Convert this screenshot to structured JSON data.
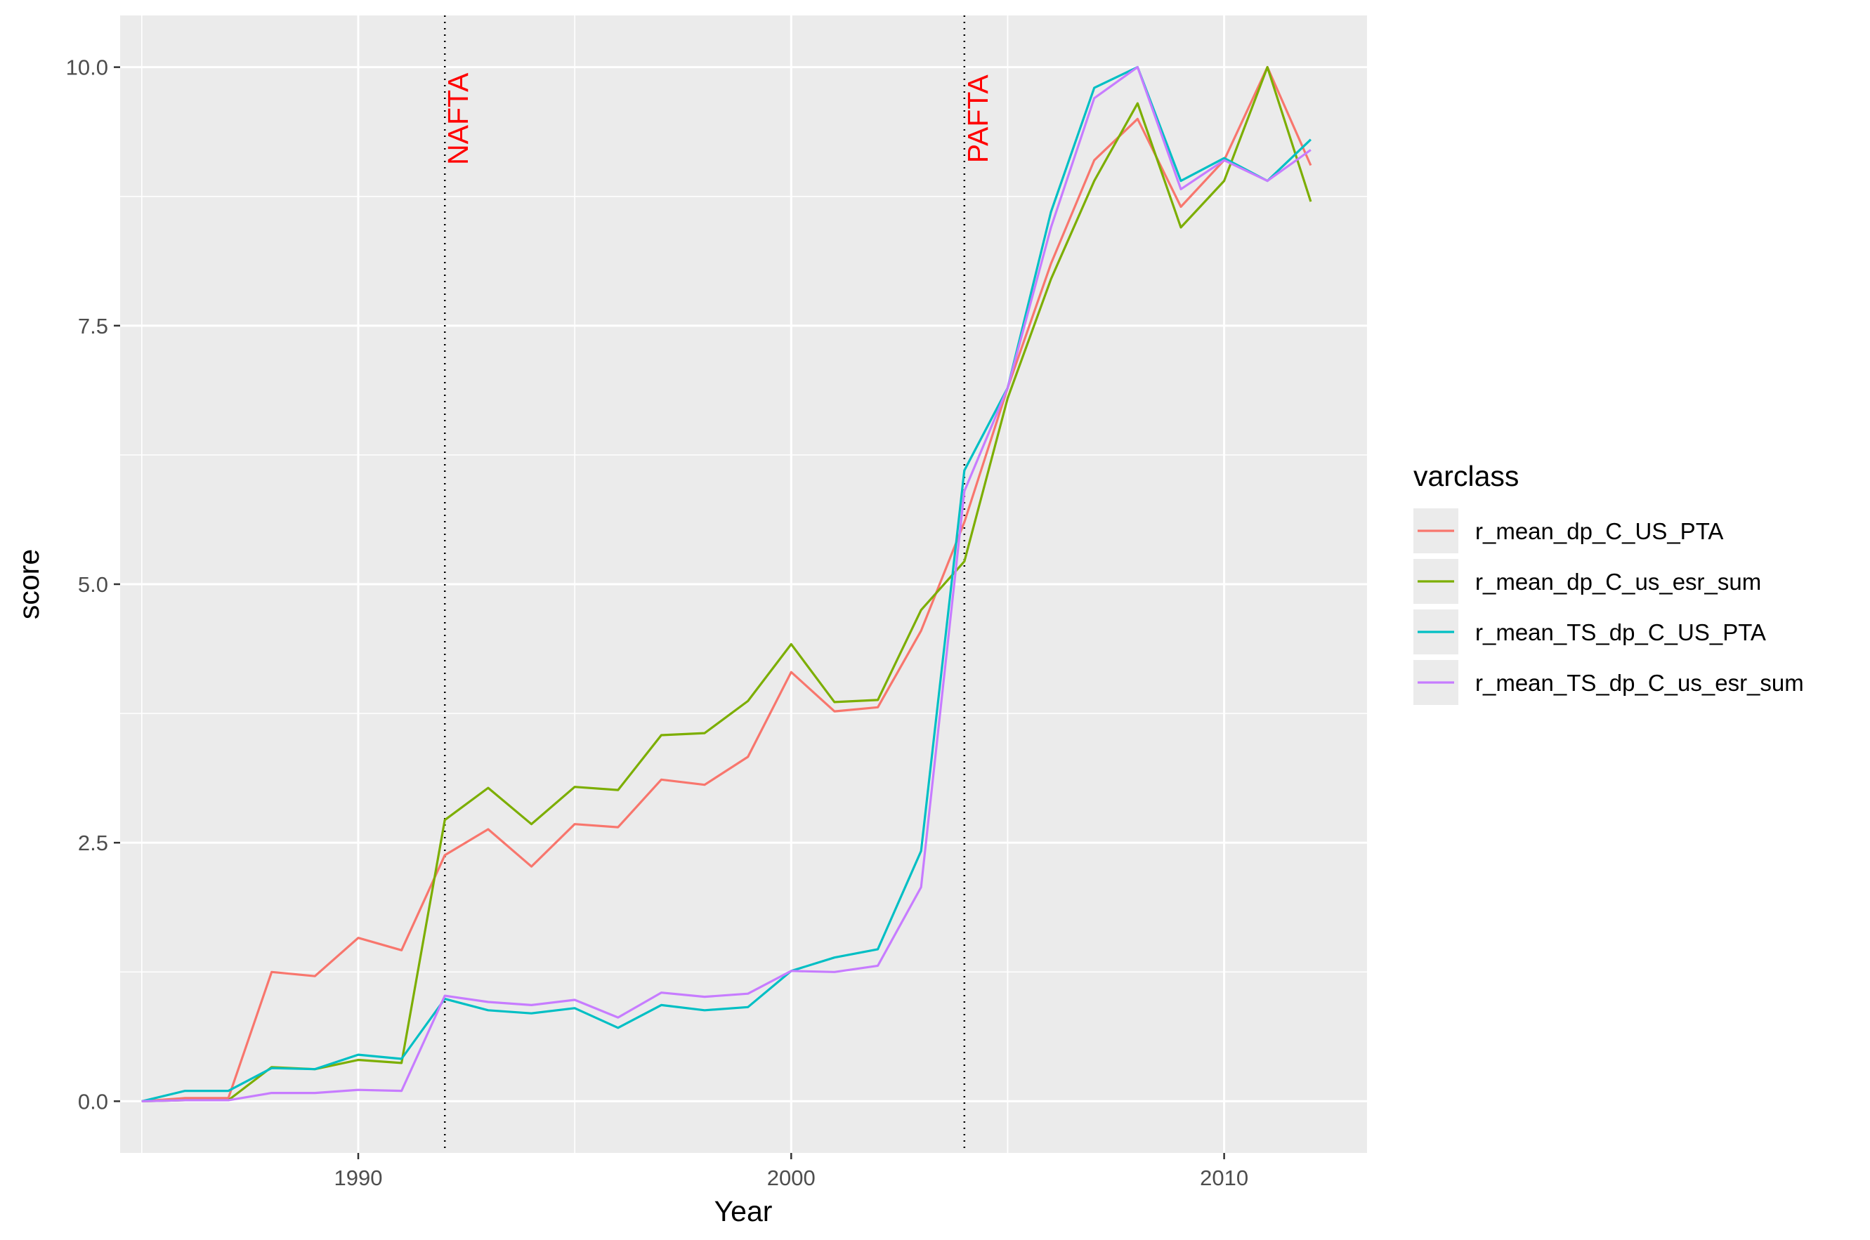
{
  "chart_data": {
    "type": "line",
    "title": "",
    "xlabel": "Year",
    "ylabel": "score",
    "xlim": [
      1984.5,
      2013.3
    ],
    "ylim": [
      -0.5,
      10.5
    ],
    "x_ticks": [
      1990,
      2000,
      2010
    ],
    "x_tick_labels": [
      "1990",
      "2000",
      "2010"
    ],
    "y_ticks": [
      0,
      2.5,
      5,
      7.5,
      10
    ],
    "y_tick_labels": [
      "0.0",
      "2.5",
      "5.0",
      "7.5",
      "10.0"
    ],
    "grid": true,
    "legend": {
      "title": "varclass",
      "placement": "right"
    },
    "x": [
      1985,
      1986,
      1987,
      1988,
      1989,
      1990,
      1991,
      1992,
      1993,
      1994,
      1995,
      1996,
      1997,
      1998,
      1999,
      2000,
      2001,
      2002,
      2003,
      2004,
      2005,
      2006,
      2007,
      2008,
      2009,
      2010,
      2011,
      2012
    ],
    "series": [
      {
        "name": "r_mean_dp_C_US_PTA",
        "color": "#F8766D",
        "values": [
          0,
          0.03,
          0.03,
          1.25,
          1.21,
          1.58,
          1.46,
          2.38,
          2.63,
          2.27,
          2.68,
          2.65,
          3.11,
          3.06,
          3.33,
          4.15,
          3.77,
          3.81,
          4.55,
          5.6,
          6.9,
          8.1,
          9.1,
          9.5,
          8.65,
          9.1,
          10.0,
          9.05
        ]
      },
      {
        "name": "r_mean_dp_C_us_esr_sum",
        "color": "#7CAE00",
        "values": [
          0,
          0.01,
          0.01,
          0.33,
          0.31,
          0.4,
          0.37,
          2.72,
          3.03,
          2.68,
          3.04,
          3.01,
          3.54,
          3.56,
          3.87,
          4.42,
          3.86,
          3.88,
          4.75,
          5.22,
          6.8,
          7.95,
          8.9,
          9.65,
          8.45,
          8.9,
          10.0,
          8.7
        ]
      },
      {
        "name": "r_mean_TS_dp_C_US_PTA",
        "color": "#00BFC4",
        "values": [
          0,
          0.1,
          0.1,
          0.32,
          0.31,
          0.45,
          0.41,
          0.99,
          0.88,
          0.85,
          0.9,
          0.71,
          0.93,
          0.88,
          0.91,
          1.26,
          1.39,
          1.47,
          2.42,
          6.1,
          6.9,
          8.6,
          9.8,
          10.0,
          8.9,
          9.12,
          8.9,
          9.3
        ]
      },
      {
        "name": "r_mean_TS_dp_C_us_esr_sum",
        "color": "#C77CFF",
        "values": [
          0,
          0.01,
          0.01,
          0.08,
          0.08,
          0.11,
          0.1,
          1.02,
          0.96,
          0.93,
          0.98,
          0.81,
          1.05,
          1.01,
          1.04,
          1.26,
          1.25,
          1.31,
          2.07,
          5.9,
          6.9,
          8.45,
          9.7,
          10.0,
          8.82,
          9.1,
          8.9,
          9.2
        ]
      }
    ],
    "annotations": [
      {
        "text": "NAFTA",
        "x": 1992,
        "y": 9.5,
        "color": "#ff0000",
        "vline_style": "dotted"
      },
      {
        "text": "PAFTA",
        "x": 2004,
        "y": 9.5,
        "color": "#ff0000",
        "vline_style": "dotted"
      }
    ]
  }
}
